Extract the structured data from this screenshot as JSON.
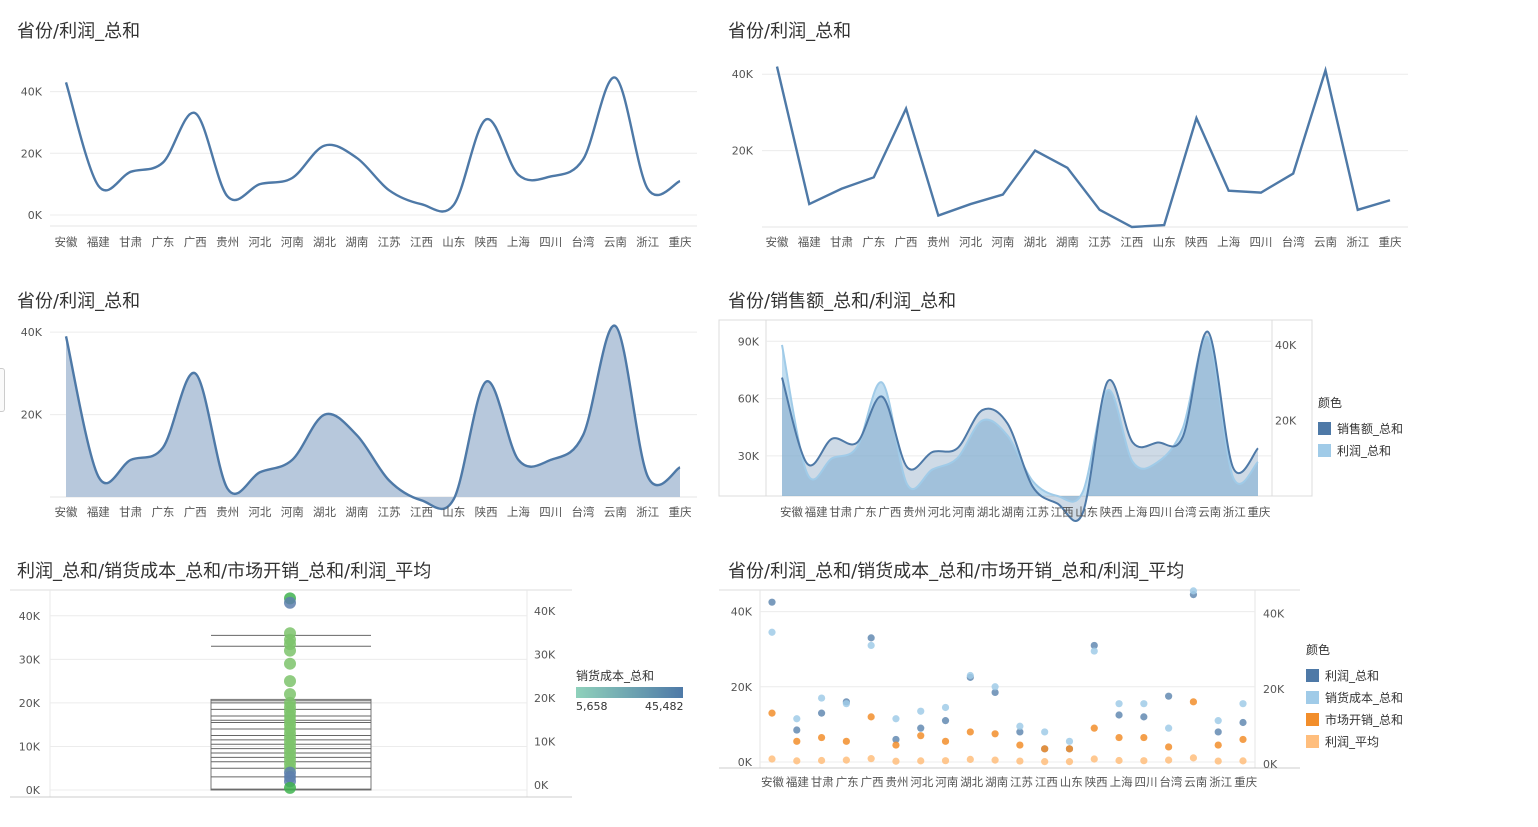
{
  "provinces": [
    "安徽",
    "福建",
    "甘肃",
    "广东",
    "广西",
    "贵州",
    "河北",
    "河南",
    "湖北",
    "湖南",
    "江苏",
    "江西",
    "山东",
    "陕西",
    "上海",
    "四川",
    "台湾",
    "云南",
    "浙江",
    "重庆"
  ],
  "titles": {
    "p1": "省份/利润_总和",
    "p2": "省份/利润_总和",
    "p3": "省份/利润_总和",
    "p4": "省份/销售额_总和/利润_总和",
    "p5": "利润_总和/销货成本_总和/市场开销_总和/利润_平均",
    "p6": "省份/利润_总和/销货成本_总和/市场开销_总和/利润_平均"
  },
  "legend4": {
    "title": "颜色",
    "items": [
      "销售额_总和",
      "利润_总和"
    ]
  },
  "legend5": {
    "title": "销货成本_总和",
    "min": "5,658",
    "max": "45,482"
  },
  "legend6": {
    "title": "颜色",
    "items": [
      "利润_总和",
      "销货成本_总和",
      "市场开销_总和",
      "利润_平均"
    ]
  },
  "colors": {
    "profit": "#4e79a7",
    "cost": "#a0cbe8",
    "market": "#f28e2b",
    "avg": "#ffbe7d",
    "sales_fill": "#4e79a7",
    "area_fill": "#b7c8dc",
    "green": "#59a14f",
    "grad_low": "#8fd1bb",
    "grad_high": "#4e79a7"
  },
  "chart_data": [
    {
      "type": "line",
      "title": "省份/利润_总和",
      "curve": "smooth",
      "categories": [
        "安徽",
        "福建",
        "甘肃",
        "广东",
        "广西",
        "贵州",
        "河北",
        "河南",
        "湖北",
        "湖南",
        "江苏",
        "江西",
        "山东",
        "陕西",
        "上海",
        "四川",
        "台湾",
        "云南",
        "浙江",
        "重庆"
      ],
      "series": [
        {
          "name": "利润_总和",
          "values": [
            43000,
            9500,
            14000,
            17000,
            33000,
            6000,
            10000,
            12000,
            22500,
            18500,
            8000,
            3500,
            3300,
            31000,
            13000,
            12500,
            18000,
            44500,
            8500,
            11000
          ]
        }
      ],
      "yticks": [
        "0K",
        "20K",
        "40K"
      ],
      "ylim": [
        0,
        47000
      ]
    },
    {
      "type": "line",
      "title": "省份/利润_总和",
      "curve": "linear",
      "categories": [
        "安徽",
        "福建",
        "甘肃",
        "广东",
        "广西",
        "贵州",
        "河北",
        "河南",
        "湖北",
        "湖南",
        "江苏",
        "江西",
        "山东",
        "陕西",
        "上海",
        "四川",
        "台湾",
        "云南",
        "浙江",
        "重庆"
      ],
      "series": [
        {
          "name": "利润_总和",
          "values": [
            42000,
            6000,
            10000,
            13000,
            31000,
            3000,
            6000,
            8500,
            20000,
            15500,
            4500,
            0,
            500,
            28500,
            9500,
            9000,
            14000,
            41000,
            4500,
            7000
          ]
        }
      ],
      "yticks": [
        "20K",
        "40K"
      ],
      "ylim": [
        0,
        44500
      ]
    },
    {
      "type": "area",
      "title": "省份/利润_总和",
      "categories": [
        "安徽",
        "福建",
        "甘肃",
        "广东",
        "广西",
        "贵州",
        "河北",
        "河南",
        "湖北",
        "湖南",
        "江苏",
        "江西",
        "山东",
        "陕西",
        "上海",
        "四川",
        "台湾",
        "云南",
        "浙江",
        "重庆"
      ],
      "series": [
        {
          "name": "利润_总和",
          "values": [
            39000,
            5000,
            9000,
            12000,
            30000,
            2000,
            6000,
            9000,
            20000,
            15000,
            4000,
            -800,
            -500,
            28000,
            9000,
            9000,
            15000,
            41500,
            5000,
            7200
          ]
        }
      ],
      "yticks": [
        "20K",
        "40K"
      ],
      "ylim": [
        0,
        41500
      ]
    },
    {
      "type": "area",
      "title": "省份/销售额_总和/利润_总和",
      "dual_axis": true,
      "categories": [
        "安徽",
        "福建",
        "甘肃",
        "广东",
        "广西",
        "贵州",
        "河北",
        "河南",
        "湖北",
        "湖南",
        "江苏",
        "江西",
        "山东",
        "陕西",
        "上海",
        "四川",
        "台湾",
        "云南",
        "浙江",
        "重庆"
      ],
      "series": [
        {
          "name": "销售额_总和",
          "axis": "left",
          "values": [
            71000,
            26000,
            39000,
            37000,
            61000,
            24000,
            32000,
            34000,
            54000,
            47000,
            14000,
            5000,
            0,
            69000,
            37000,
            37000,
            40000,
            95000,
            24000,
            34000
          ]
        },
        {
          "name": "利润_总和",
          "axis": "right",
          "values": [
            40000,
            6000,
            10000,
            13000,
            30000,
            3000,
            7000,
            10000,
            20000,
            16000,
            4000,
            0,
            1000,
            28000,
            9000,
            9000,
            18000,
            42000,
            5000,
            9000
          ]
        }
      ],
      "yticks_left": [
        "30K",
        "60K",
        "90K"
      ],
      "yticks_right": [
        "20K",
        "40K"
      ],
      "ylim_left": [
        9000,
        98000
      ],
      "ylim_right": [
        0,
        45000
      ]
    },
    {
      "type": "scatter",
      "title": "利润_总和/销货成本_总和/市场开销_总和/利润_平均",
      "color_field": "销货成本_总和",
      "color_range": [
        5658,
        45482
      ],
      "values": [
        44000,
        43000,
        36000,
        34500,
        33500,
        32000,
        29000,
        25000,
        22000,
        20000,
        19000,
        18000,
        17000,
        16000,
        15000,
        14000,
        13000,
        12000,
        11000,
        10000,
        9000,
        8000,
        7000,
        6000,
        5000,
        4000,
        3000,
        2000,
        500
      ],
      "boxes": [
        35500,
        33000,
        20500,
        20000,
        18500,
        17000,
        16000,
        15500,
        14000,
        12500,
        11500,
        10500,
        9500,
        8500,
        7500,
        6500,
        5000,
        3000,
        200
      ],
      "yticks_left": [
        "0K",
        "10K",
        "20K",
        "30K",
        "40K"
      ],
      "yticks_right": [
        "0K",
        "10K",
        "20K",
        "30K",
        "40K"
      ],
      "ylim": [
        0,
        45000
      ]
    },
    {
      "type": "scatter",
      "title": "省份/利润_总和/销货成本_总和/市场开销_总和/利润_平均",
      "categories": [
        "安徽",
        "福建",
        "甘肃",
        "广东",
        "广西",
        "贵州",
        "河北",
        "河南",
        "湖北",
        "湖南",
        "江苏",
        "江西",
        "山东",
        "陕西",
        "上海",
        "四川",
        "台湾",
        "云南",
        "浙江",
        "重庆"
      ],
      "series": [
        {
          "name": "利润_总和",
          "values": [
            42500,
            8500,
            13000,
            16000,
            33000,
            6000,
            9000,
            11000,
            22500,
            18500,
            8000,
            3500,
            3500,
            31000,
            12500,
            12000,
            17500,
            44500,
            8000,
            10500
          ]
        },
        {
          "name": "销货成本_总和",
          "values": [
            34500,
            11500,
            17000,
            15500,
            31000,
            11500,
            13500,
            14500,
            23000,
            20000,
            9500,
            8000,
            5500,
            29500,
            15500,
            15500,
            9000,
            45500,
            11000,
            15500
          ]
        },
        {
          "name": "市场开销_总和",
          "values": [
            13000,
            5500,
            6500,
            5500,
            12000,
            4500,
            7000,
            5500,
            8000,
            7500,
            4500,
            3500,
            3500,
            9000,
            6500,
            6500,
            4000,
            16000,
            4500,
            6000
          ]
        },
        {
          "name": "利润_平均",
          "values": [
            800,
            300,
            400,
            500,
            900,
            200,
            300,
            350,
            700,
            500,
            250,
            100,
            100,
            800,
            400,
            350,
            500,
            1100,
            250,
            300
          ]
        }
      ],
      "yticks_left": [
        "0K",
        "20K",
        "40K"
      ],
      "yticks_right": [
        "0K",
        "20K",
        "40K"
      ],
      "ylim": [
        0,
        46000
      ]
    }
  ]
}
